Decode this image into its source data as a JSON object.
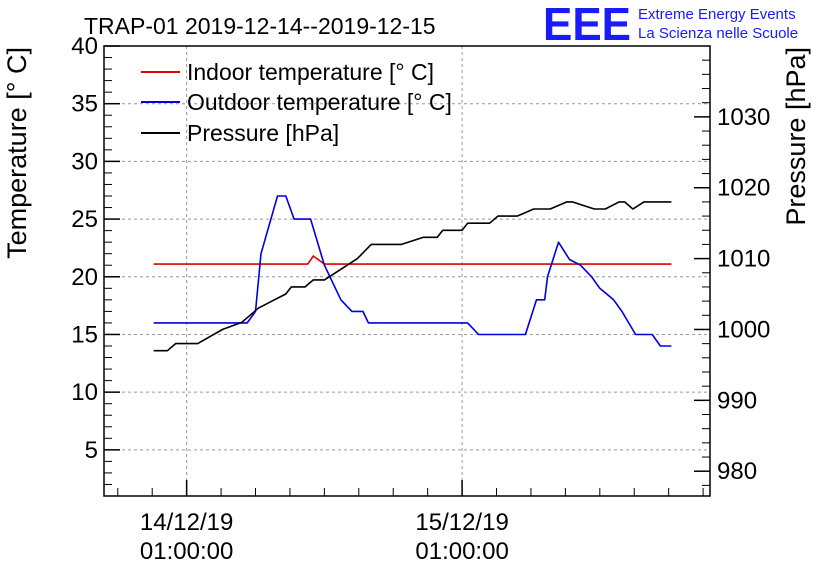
{
  "chart_data": {
    "type": "line",
    "title": "TRAP-01 2019-12-14--2019-12-15",
    "ylabel": "Temperature [° C]",
    "y2label": "Pressure [hPa]",
    "xlabel": "",
    "ylim": [
      1,
      40
    ],
    "y2lim": [
      976.5,
      1040
    ],
    "xlim": [
      -0.3,
      1.9
    ],
    "x_unit": "days since 14/12/19 01:00:00",
    "grid": true,
    "legend_position": "top-left",
    "x_ticks": [
      {
        "x": 0,
        "date": "14/12/19",
        "time": "01:00:00"
      },
      {
        "x": 1,
        "date": "15/12/19",
        "time": "01:00:00"
      }
    ],
    "y_ticks": [
      5,
      10,
      15,
      20,
      25,
      30,
      35,
      40
    ],
    "y2_ticks": [
      980,
      990,
      1000,
      1010,
      1020,
      1030
    ],
    "series": [
      {
        "name": "Indoor temperature [° C]",
        "axis": "left",
        "color": "#e00000",
        "x": [
          -0.12,
          0.44,
          0.46,
          0.5,
          1.76
        ],
        "values": [
          21.1,
          21.1,
          21.8,
          21.1,
          21.1
        ]
      },
      {
        "name": "Outdoor temperature [° C]",
        "axis": "left",
        "color": "#0000e0",
        "x": [
          -0.12,
          0.22,
          0.25,
          0.27,
          0.33,
          0.36,
          0.39,
          0.45,
          0.5,
          0.56,
          0.6,
          0.64,
          0.66,
          1.02,
          1.06,
          1.23,
          1.27,
          1.3,
          1.31,
          1.35,
          1.39,
          1.43,
          1.47,
          1.5,
          1.55,
          1.58,
          1.63,
          1.69,
          1.72,
          1.76
        ],
        "values": [
          16,
          16,
          17,
          22,
          27,
          27,
          25,
          25,
          21,
          18,
          17,
          17,
          16,
          16,
          15,
          15,
          18,
          18,
          20,
          23,
          21.5,
          21,
          20,
          19,
          18,
          17,
          15,
          15,
          14,
          14
        ]
      },
      {
        "name": "Pressure [hPa]",
        "axis": "right",
        "color": "#000000",
        "x": [
          -0.12,
          -0.07,
          -0.04,
          0.04,
          0.13,
          0.2,
          0.23,
          0.26,
          0.31,
          0.36,
          0.38,
          0.43,
          0.46,
          0.5,
          0.54,
          0.58,
          0.62,
          0.67,
          0.75,
          0.78,
          0.86,
          0.91,
          0.93,
          1.0,
          1.02,
          1.1,
          1.13,
          1.2,
          1.26,
          1.32,
          1.38,
          1.4,
          1.48,
          1.52,
          1.57,
          1.59,
          1.62,
          1.66,
          1.69,
          1.76
        ],
        "values": [
          997,
          997,
          998,
          998,
          1000,
          1001,
          1002,
          1003,
          1004,
          1005,
          1006,
          1006,
          1007,
          1007,
          1008,
          1009,
          1010,
          1012,
          1012,
          1012,
          1013,
          1013,
          1014,
          1014,
          1015,
          1015,
          1016,
          1016,
          1017,
          1017,
          1018,
          1018,
          1017,
          1017,
          1018,
          1018,
          1017,
          1018,
          1018,
          1018
        ]
      }
    ]
  },
  "logo": {
    "mark": "EEE",
    "line1": "Extreme Energy Events",
    "line2": "La Scienza nelle Scuole",
    "color": "#1a1aff"
  }
}
